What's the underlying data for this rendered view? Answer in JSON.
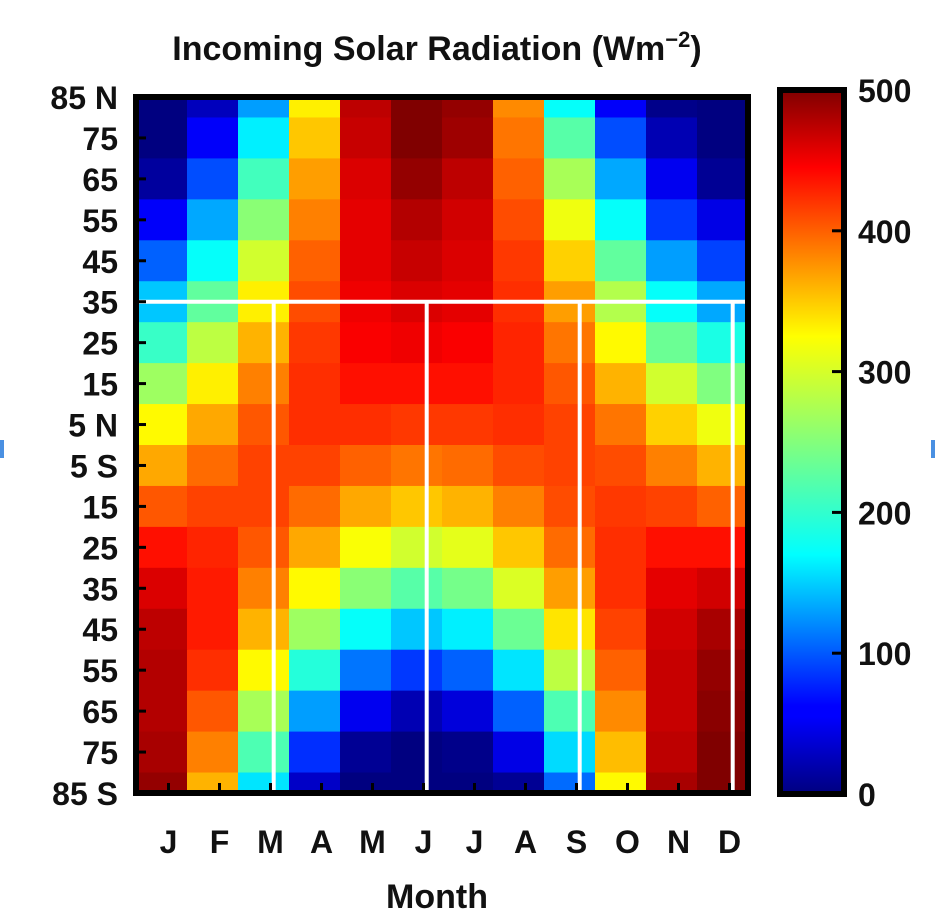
{
  "chart_data": {
    "type": "heatmap",
    "title": "Incoming Solar Radiation (Wm",
    "title_superscript": "−2",
    "title_close": ")",
    "xlabel": "Month",
    "ylabel": "",
    "x_categories": [
      "J",
      "F",
      "M",
      "A",
      "M",
      "J",
      "J",
      "A",
      "S",
      "O",
      "N",
      "D"
    ],
    "y_ticks": [
      "85 N",
      "75",
      "65",
      "55",
      "45",
      "35",
      "25",
      "15",
      "5 N",
      "5 S",
      "15",
      "25",
      "35",
      "45",
      "55",
      "65",
      "75",
      "85 S"
    ],
    "y_latitudes": [
      85,
      75,
      65,
      55,
      45,
      35,
      25,
      15,
      5,
      -5,
      -15,
      -25,
      -35,
      -45,
      -55,
      -65,
      -75,
      -85
    ],
    "colorbar": {
      "range": [
        0,
        500
      ],
      "ticks": [
        0,
        100,
        200,
        300,
        400,
        500
      ],
      "tick_labels": [
        "0",
        "100",
        "200",
        "300",
        "400",
        "500"
      ],
      "colormap": "jet",
      "contour_interval": 50
    },
    "values_by_latitude": [
      [
        0,
        30,
        140,
        320,
        470,
        520,
        490,
        370,
        190,
        60,
        5,
        0
      ],
      [
        0,
        60,
        180,
        340,
        465,
        510,
        485,
        380,
        230,
        100,
        25,
        0
      ],
      [
        15,
        100,
        220,
        360,
        455,
        490,
        470,
        390,
        270,
        145,
        55,
        10
      ],
      [
        60,
        145,
        255,
        375,
        450,
        475,
        460,
        400,
        305,
        190,
        90,
        50
      ],
      [
        110,
        190,
        290,
        390,
        450,
        465,
        455,
        410,
        335,
        235,
        140,
        95
      ],
      [
        160,
        235,
        320,
        400,
        445,
        455,
        450,
        415,
        360,
        275,
        190,
        145
      ],
      [
        215,
        280,
        350,
        410,
        440,
        445,
        440,
        420,
        380,
        315,
        240,
        200
      ],
      [
        265,
        320,
        375,
        415,
        430,
        430,
        430,
        420,
        395,
        350,
        290,
        250
      ],
      [
        315,
        355,
        395,
        415,
        415,
        410,
        410,
        415,
        405,
        380,
        335,
        305
      ],
      [
        355,
        385,
        405,
        405,
        390,
        380,
        385,
        400,
        405,
        400,
        375,
        350
      ],
      [
        395,
        405,
        405,
        385,
        355,
        340,
        350,
        375,
        400,
        410,
        405,
        390
      ],
      [
        430,
        420,
        395,
        355,
        310,
        290,
        300,
        340,
        385,
        415,
        430,
        430
      ],
      [
        455,
        425,
        375,
        315,
        255,
        230,
        245,
        295,
        360,
        415,
        450,
        460
      ],
      [
        470,
        425,
        350,
        265,
        190,
        160,
        180,
        240,
        325,
        405,
        460,
        480
      ],
      [
        475,
        415,
        315,
        205,
        120,
        90,
        110,
        175,
        280,
        390,
        465,
        490
      ],
      [
        475,
        395,
        270,
        140,
        55,
        25,
        45,
        110,
        225,
        370,
        465,
        495
      ],
      [
        480,
        375,
        225,
        85,
        10,
        0,
        5,
        50,
        170,
        345,
        470,
        510
      ],
      [
        490,
        350,
        175,
        35,
        0,
        0,
        0,
        10,
        115,
        315,
        480,
        520
      ]
    ],
    "annotations": [
      {
        "type": "horizontal-line",
        "latitude": 35,
        "color": "#ffffff"
      },
      {
        "type": "vertical-line",
        "month_position": 2.7,
        "color": "#ffffff"
      },
      {
        "type": "vertical-line",
        "month_position": 5.7,
        "color": "#ffffff"
      },
      {
        "type": "vertical-line",
        "month_position": 8.7,
        "color": "#ffffff"
      },
      {
        "type": "vertical-line",
        "month_position": 11.7,
        "color": "#ffffff"
      }
    ],
    "grid": false,
    "legend": "colorbar-right"
  }
}
